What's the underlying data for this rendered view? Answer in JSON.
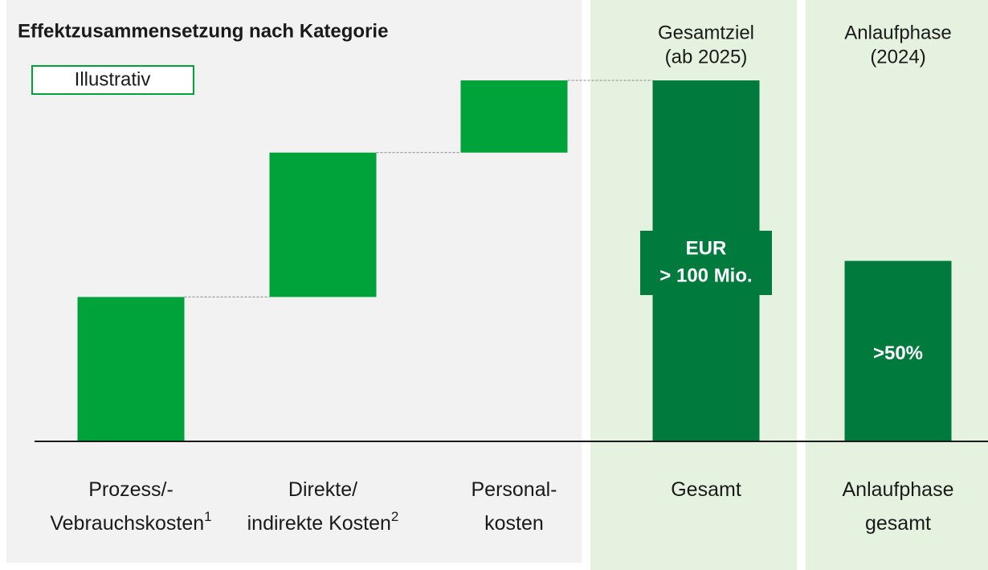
{
  "chart_data": {
    "type": "waterfall",
    "title": "Effektzusammensetzung nach Kategorie",
    "annotation": "Illustrativ",
    "panel_headers": [
      null,
      null,
      null,
      [
        "Gesamtziel",
        "(ab 2025)"
      ],
      [
        "Anlaufphase",
        "(2024)"
      ]
    ],
    "categories": [
      {
        "lines": [
          "Prozess/-",
          "Vebrauchskosten"
        ],
        "note": "1"
      },
      {
        "lines": [
          "Direkte/",
          "indirekte Kosten"
        ],
        "note": "2"
      },
      {
        "lines": [
          "Personal-",
          "kosten"
        ]
      },
      {
        "lines": [
          "Gesamt"
        ]
      },
      {
        "lines": [
          "Anlaufphase",
          "gesamt"
        ]
      }
    ],
    "values": [
      40,
      40,
      20,
      100,
      50
    ],
    "measures": [
      "relative",
      "relative",
      "relative",
      "total",
      "total"
    ],
    "value_labels": [
      null,
      null,
      null,
      [
        "EUR",
        "> 100 Mio."
      ],
      [
        ">50%"
      ]
    ],
    "colors": {
      "relative": "#00a33a",
      "total": "#007a3d"
    },
    "ylim": [
      0,
      100
    ]
  }
}
